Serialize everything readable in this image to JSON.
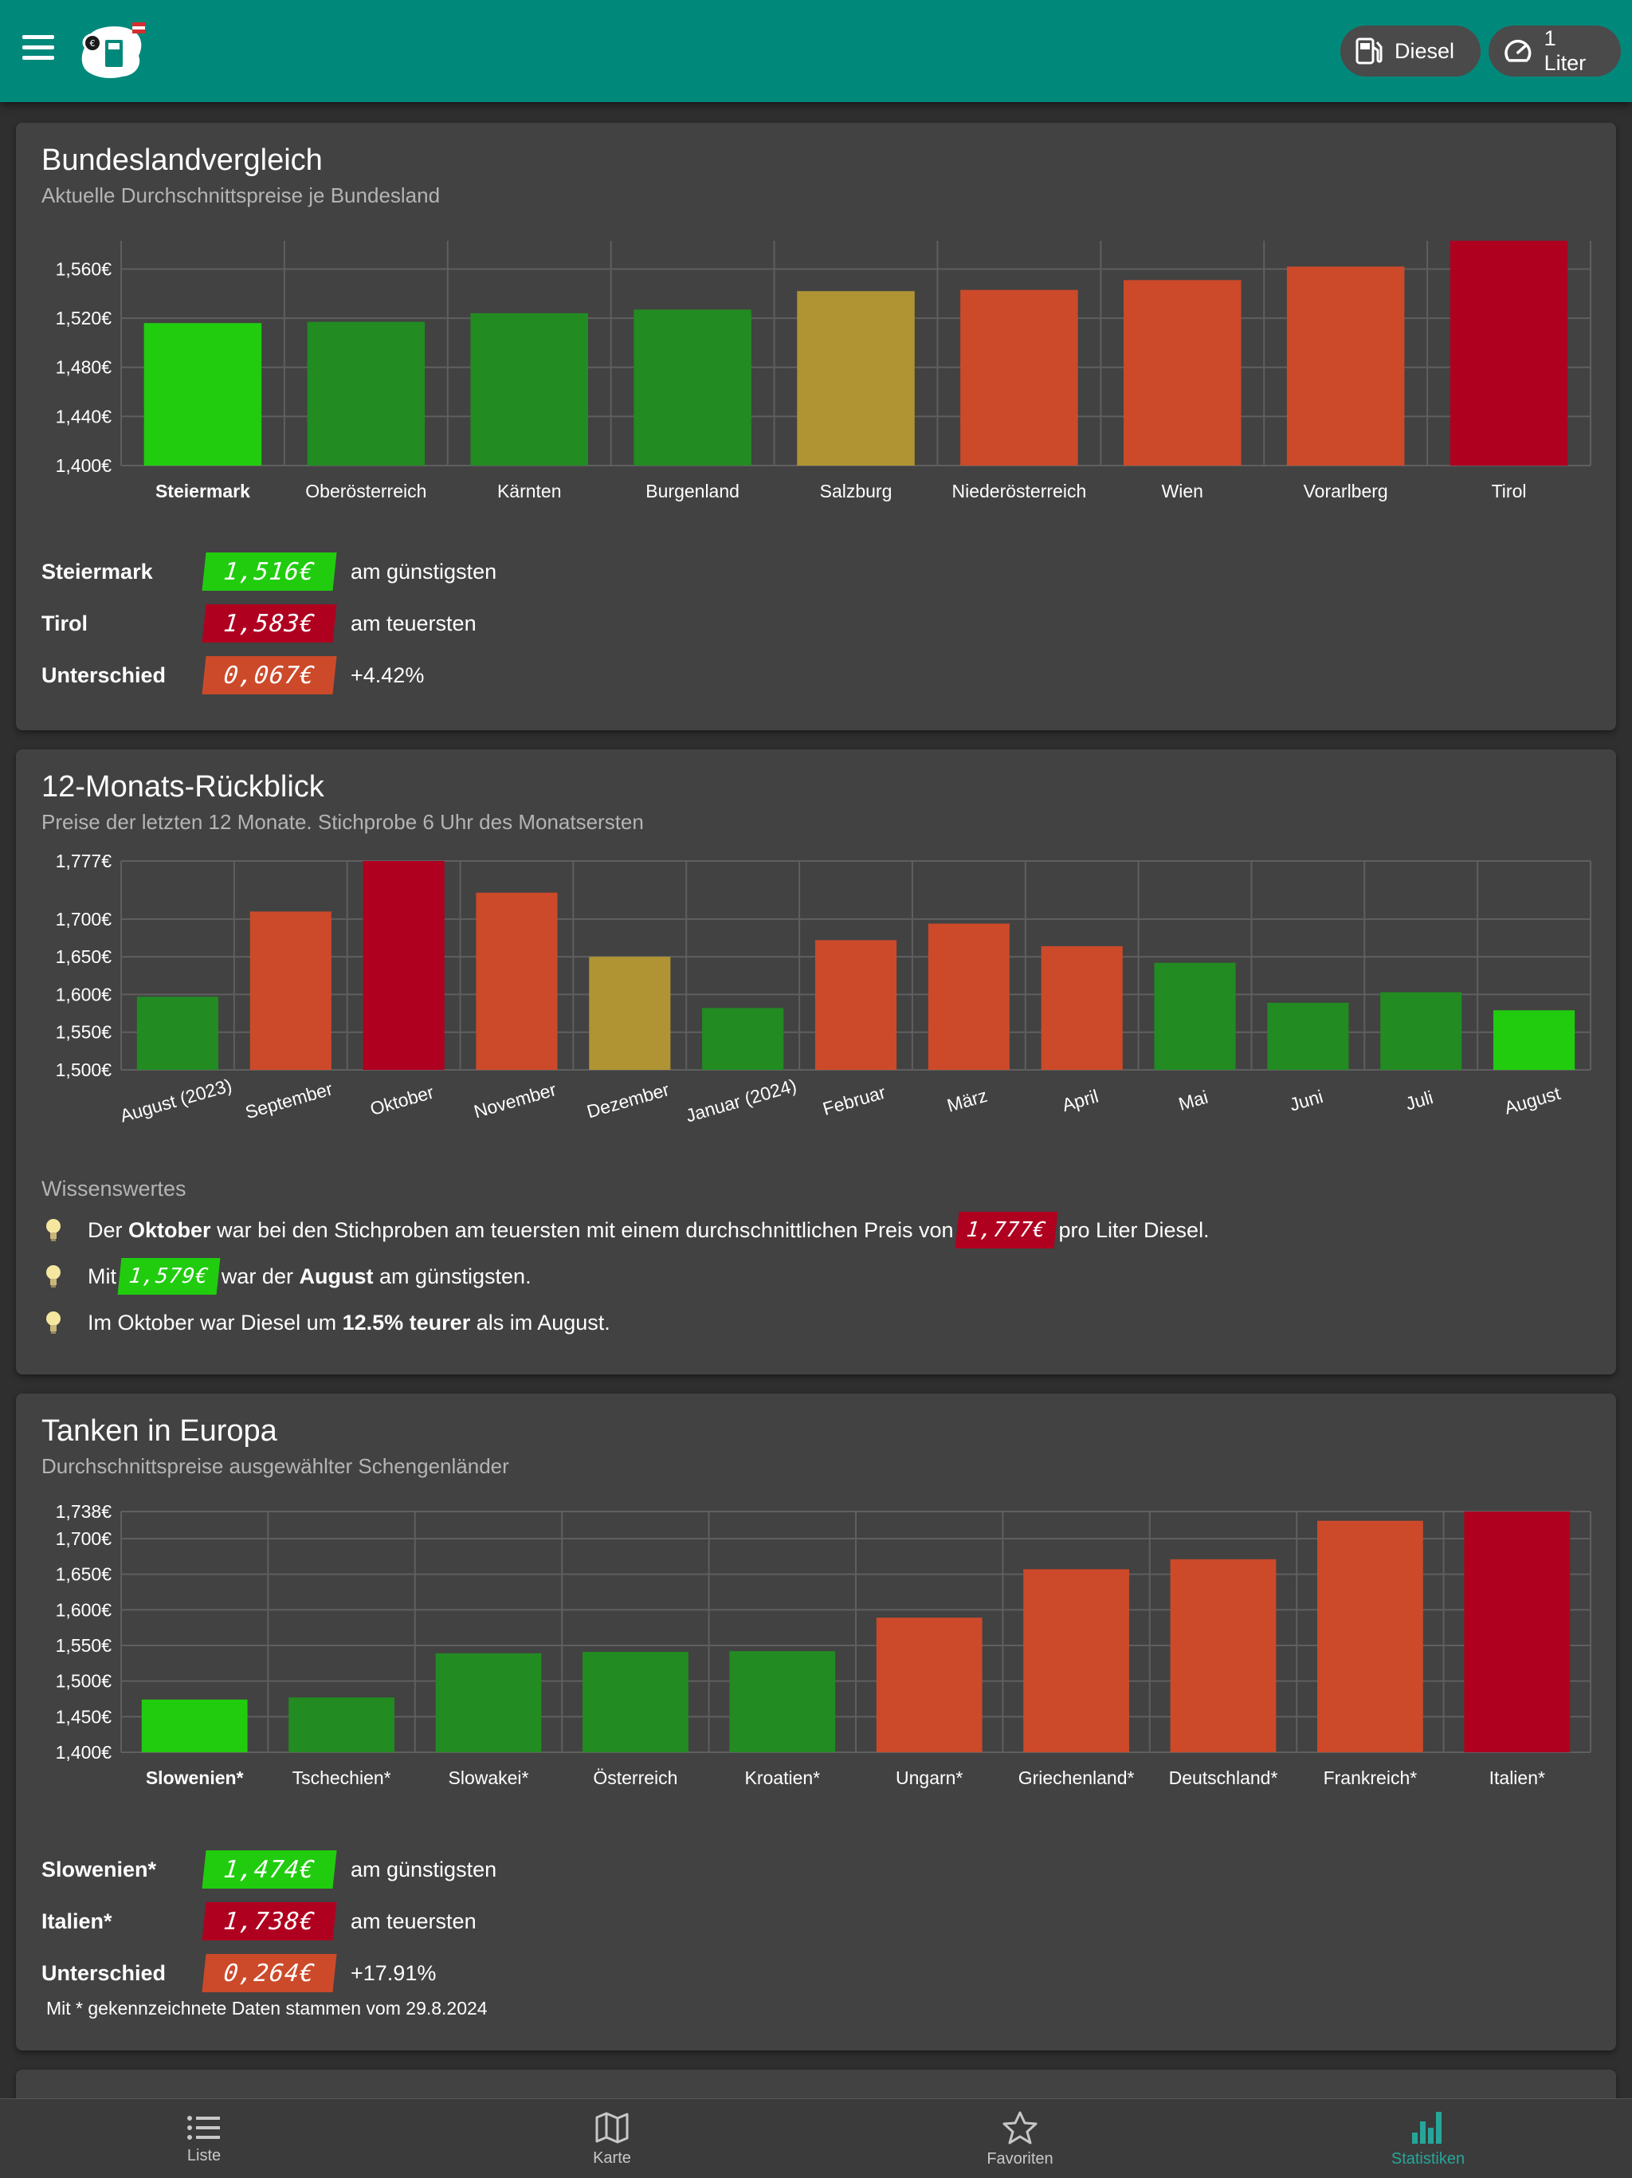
{
  "app": {
    "fuel_chip": {
      "label": "Diesel",
      "icon": "fuel-pump-icon"
    },
    "amount_chip": {
      "label": "1 Liter",
      "icon": "speedometer-icon"
    }
  },
  "colors": {
    "accent": "#00897b",
    "cheapest": "#21cc0f",
    "cheap": "#228b22",
    "mid": "#b09433",
    "expensive": "#cc4a2a",
    "most_expensive": "#b00020"
  },
  "bundesland": {
    "title": "Bundeslandvergleich",
    "subtitle": "Aktuelle Durchschnittspreise je Bundesland",
    "chart_data": {
      "type": "bar",
      "categories": [
        "Steiermark",
        "Oberösterreich",
        "Kärnten",
        "Burgenland",
        "Salzburg",
        "Niederösterreich",
        "Wien",
        "Vorarlberg",
        "Tirol"
      ],
      "values": [
        1.516,
        1.517,
        1.524,
        1.527,
        1.542,
        1.543,
        1.551,
        1.562,
        1.583
      ],
      "colors": [
        "#21cc0f",
        "#228b22",
        "#228b22",
        "#228b22",
        "#b09433",
        "#cc4a2a",
        "#cc4a2a",
        "#cc4a2a",
        "#b00020"
      ],
      "label_colors": [
        "#21cc0f",
        "#ffffff",
        "#ffffff",
        "#ffffff",
        "#ffffff",
        "#ffffff",
        "#ffffff",
        "#ffffff",
        "#b00020"
      ],
      "yticks": [
        "1,400€",
        "1,440€",
        "1,480€",
        "1,520€",
        "1,560€"
      ],
      "ytick_values": [
        1.4,
        1.44,
        1.48,
        1.52,
        1.56
      ],
      "ylim": [
        1.4,
        1.583
      ]
    },
    "rows": [
      {
        "name": "Steiermark",
        "price": "1,516€",
        "text": "am günstigsten",
        "color": "#21cc0f"
      },
      {
        "name": "Tirol",
        "price": "1,583€",
        "text": "am teuersten",
        "color": "#b00020"
      },
      {
        "name": "Unterschied",
        "price": "0,067€",
        "text": "+4.42%",
        "color": "#cc4a2a"
      }
    ]
  },
  "monthly": {
    "title": "12-Monats-Rückblick",
    "subtitle": "Preise der letzten 12 Monate. Stichprobe 6 Uhr des Monatsersten",
    "chart_data": {
      "type": "bar",
      "categories": [
        "August (2023)",
        "September",
        "Oktober",
        "November",
        "Dezember",
        "Januar (2024)",
        "Februar",
        "März",
        "April",
        "Mai",
        "Juni",
        "Juli",
        "August"
      ],
      "values": [
        1.597,
        1.71,
        1.777,
        1.735,
        1.65,
        1.582,
        1.672,
        1.694,
        1.664,
        1.642,
        1.589,
        1.603,
        1.579
      ],
      "colors": [
        "#228b22",
        "#cc4a2a",
        "#b00020",
        "#cc4a2a",
        "#b09433",
        "#228b22",
        "#cc4a2a",
        "#cc4a2a",
        "#cc4a2a",
        "#228b22",
        "#228b22",
        "#228b22",
        "#21cc0f"
      ],
      "label_colors": [
        "#ffffff",
        "#ffffff",
        "#b00020",
        "#ffffff",
        "#ffffff",
        "#ffffff",
        "#ffffff",
        "#ffffff",
        "#ffffff",
        "#ffffff",
        "#ffffff",
        "#ffffff",
        "#21cc0f"
      ],
      "yticks": [
        "1,500€",
        "1,550€",
        "1,600€",
        "1,650€",
        "1,700€",
        "1,777€"
      ],
      "ytick_values": [
        1.5,
        1.55,
        1.6,
        1.65,
        1.7,
        1.777
      ],
      "ylim": [
        1.5,
        1.777
      ]
    },
    "info_heading": "Wissenswertes",
    "facts": {
      "f1_a": "Der",
      "f1_b": "Oktober",
      "f1_c": "war bei den Stichproben am teuersten mit einem durchschnittlichen Preis von",
      "f1_price": "1,777€",
      "f1_d": "pro Liter Diesel.",
      "f2_a": "Mit",
      "f2_price": "1,579€",
      "f2_b": "war der",
      "f2_c": "August",
      "f2_d": "am günstigsten.",
      "f3_a": "Im Oktober war Diesel um",
      "f3_b": "12.5% teurer",
      "f3_c": "als im August."
    }
  },
  "europe": {
    "title": "Tanken in Europa",
    "subtitle": "Durchschnittspreise ausgewählter Schengenländer",
    "chart_data": {
      "type": "bar",
      "categories": [
        "Slowenien*",
        "Tschechien*",
        "Slowakei*",
        "Österreich",
        "Kroatien*",
        "Ungarn*",
        "Griechenland*",
        "Deutschland*",
        "Frankreich*",
        "Italien*"
      ],
      "values": [
        1.474,
        1.477,
        1.539,
        1.541,
        1.542,
        1.589,
        1.657,
        1.671,
        1.725,
        1.738
      ],
      "colors": [
        "#21cc0f",
        "#228b22",
        "#228b22",
        "#228b22",
        "#228b22",
        "#cc4a2a",
        "#cc4a2a",
        "#cc4a2a",
        "#cc4a2a",
        "#b00020"
      ],
      "label_colors": [
        "#21cc0f",
        "#ffffff",
        "#ffffff",
        "#ffffff",
        "#ffffff",
        "#ffffff",
        "#ffffff",
        "#ffffff",
        "#ffffff",
        "#b00020"
      ],
      "yticks": [
        "1,400€",
        "1,450€",
        "1,500€",
        "1,550€",
        "1,600€",
        "1,650€",
        "1,700€",
        "1,738€"
      ],
      "ytick_values": [
        1.4,
        1.45,
        1.5,
        1.55,
        1.6,
        1.65,
        1.7,
        1.738
      ],
      "ylim": [
        1.4,
        1.738
      ]
    },
    "rows": [
      {
        "name": "Slowenien*",
        "price": "1,474€",
        "text": "am günstigsten",
        "color": "#21cc0f"
      },
      {
        "name": "Italien*",
        "price": "1,738€",
        "text": "am teuersten",
        "color": "#b00020"
      },
      {
        "name": "Unterschied",
        "price": "0,264€",
        "text": "+17.91%",
        "color": "#cc4a2a"
      }
    ],
    "footnote": "Mit * gekennzeichnete Daten stammen vom 29.8.2024"
  },
  "nav": {
    "items": [
      {
        "label": "Liste",
        "icon": "list-icon"
      },
      {
        "label": "Karte",
        "icon": "map-icon"
      },
      {
        "label": "Favoriten",
        "icon": "star-icon"
      },
      {
        "label": "Statistiken",
        "icon": "bar-chart-icon"
      }
    ]
  }
}
